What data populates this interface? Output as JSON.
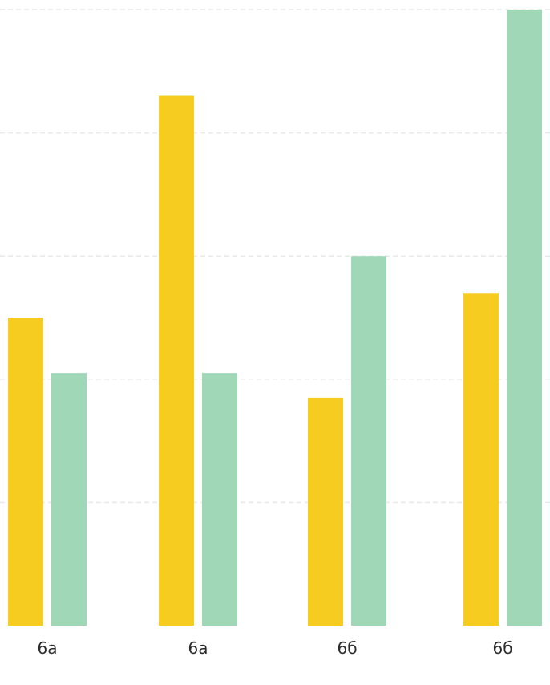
{
  "chart_data": {
    "type": "bar",
    "categories": [
      "6a",
      "6a",
      "6б",
      "6б"
    ],
    "series": [
      {
        "values": [
          5.0,
          8.6,
          3.7,
          5.4
        ],
        "color": "#f5cc1f"
      },
      {
        "values": [
          4.1,
          4.1,
          6.0,
          10.0
        ],
        "color": "#9fd7b7"
      }
    ],
    "ylim": [
      0,
      10
    ],
    "grid": true,
    "gridlines": [
      0,
      2,
      4,
      6,
      8,
      10
    ],
    "legend": "none"
  }
}
